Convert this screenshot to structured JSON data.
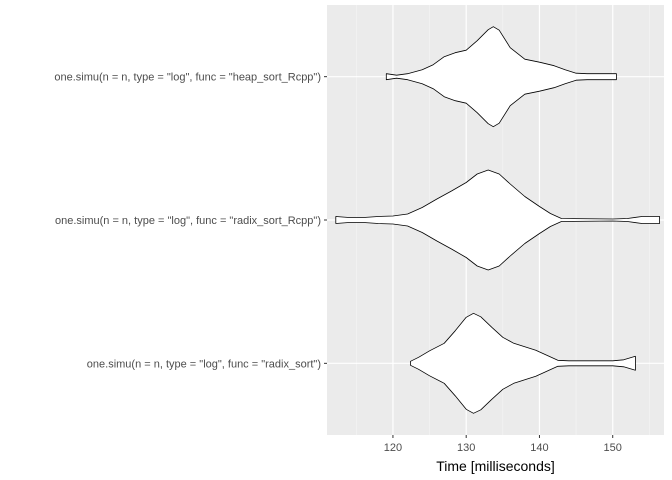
{
  "chart_data": {
    "type": "violin",
    "title": "",
    "xlabel": "Time [milliseconds]",
    "ylabel": "",
    "xlim": [
      111,
      157
    ],
    "x_ticks": [
      120,
      130,
      140,
      150
    ],
    "x_tick_labels": [
      "120",
      "130",
      "140",
      "150"
    ],
    "grid": true,
    "legend": "none",
    "colors": {
      "panel": "#ebebeb",
      "grid_major": "#ffffff",
      "grid_minor": "#f5f5f5",
      "violin_fill": "#ffffff",
      "violin_stroke": "#000000"
    },
    "categories": [
      "one.simu(n = n, type = \"log\", func = \"radix_sort\")",
      "one.simu(n = n, type = \"log\", func = \"radix_sort_Rcpp\")",
      "one.simu(n = n, type = \"log\", func = \"heap_sort_Rcpp\")"
    ],
    "series": [
      {
        "category": "one.simu(n = n, type = \"log\", func = \"radix_sort\")",
        "min": 122.4,
        "max": 153.1,
        "density_profile": [
          [
            122.4,
            0.04
          ],
          [
            123.5,
            0.12
          ],
          [
            125,
            0.25
          ],
          [
            127,
            0.4
          ],
          [
            128.5,
            0.65
          ],
          [
            130,
            0.92
          ],
          [
            131,
            1.0
          ],
          [
            132,
            0.93
          ],
          [
            133.5,
            0.72
          ],
          [
            135,
            0.52
          ],
          [
            136.5,
            0.4
          ],
          [
            138,
            0.33
          ],
          [
            139.5,
            0.26
          ],
          [
            141,
            0.16
          ],
          [
            142.5,
            0.06
          ],
          [
            144,
            0.05
          ],
          [
            147,
            0.05
          ],
          [
            150,
            0.05
          ],
          [
            151.5,
            0.07
          ],
          [
            153.1,
            0.14
          ]
        ]
      },
      {
        "category": "one.simu(n = n, type = \"log\", func = \"radix_sort_Rcpp\")",
        "min": 112.2,
        "max": 156.4,
        "density_profile": [
          [
            112.2,
            0.07
          ],
          [
            114,
            0.05
          ],
          [
            116,
            0.05
          ],
          [
            118,
            0.07
          ],
          [
            120,
            0.08
          ],
          [
            122,
            0.12
          ],
          [
            124,
            0.25
          ],
          [
            126,
            0.42
          ],
          [
            128,
            0.58
          ],
          [
            130,
            0.75
          ],
          [
            131.5,
            0.92
          ],
          [
            133,
            1.0
          ],
          [
            134.5,
            0.92
          ],
          [
            136,
            0.72
          ],
          [
            138,
            0.47
          ],
          [
            140,
            0.27
          ],
          [
            141.5,
            0.13
          ],
          [
            143,
            0.03
          ],
          [
            150,
            0.02
          ],
          [
            152,
            0.03
          ],
          [
            154,
            0.07
          ],
          [
            156.4,
            0.07
          ]
        ]
      },
      {
        "category": "one.simu(n = n, type = \"log\", func = \"heap_sort_Rcpp\")",
        "min": 119.1,
        "max": 150.5,
        "density_profile": [
          [
            119.1,
            0.06
          ],
          [
            120.5,
            0.03
          ],
          [
            122,
            0.06
          ],
          [
            124,
            0.14
          ],
          [
            125.5,
            0.24
          ],
          [
            127,
            0.4
          ],
          [
            128.5,
            0.48
          ],
          [
            130,
            0.53
          ],
          [
            131.5,
            0.72
          ],
          [
            133,
            0.94
          ],
          [
            133.7,
            1.0
          ],
          [
            134.5,
            0.93
          ],
          [
            136,
            0.58
          ],
          [
            138,
            0.35
          ],
          [
            140,
            0.29
          ],
          [
            142,
            0.22
          ],
          [
            143.5,
            0.14
          ],
          [
            145,
            0.07
          ],
          [
            146.5,
            0.06
          ],
          [
            150.5,
            0.06
          ]
        ]
      }
    ]
  }
}
